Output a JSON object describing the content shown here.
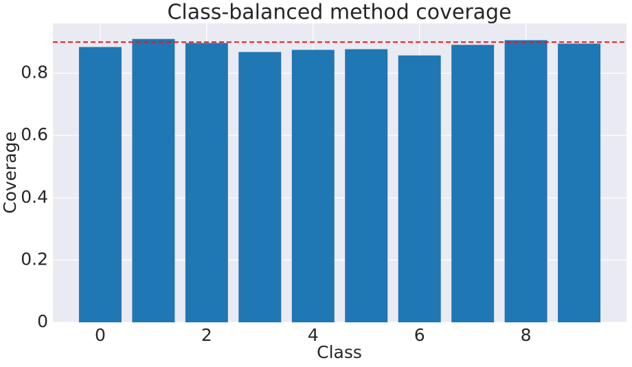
{
  "chart_data": {
    "type": "bar",
    "title": "Class-balanced method coverage",
    "x_label": "Class",
    "y_label": "Coverage",
    "x": [
      0,
      1,
      2,
      3,
      4,
      5,
      6,
      7,
      8,
      9
    ],
    "values": [
      0.884,
      0.91,
      0.897,
      0.868,
      0.875,
      0.877,
      0.857,
      0.891,
      0.906,
      0.895
    ],
    "color": "#1f77b4",
    "xlim": [
      -0.89,
      9.89
    ],
    "xticks": [
      0,
      2,
      4,
      6,
      8
    ],
    "ylim": [
      0,
      0.96
    ],
    "yticks": [
      0.0,
      0.2,
      0.4,
      0.6,
      0.8
    ],
    "reference_line": 0.9,
    "reference_color": "#e8161b",
    "grid": true
  }
}
